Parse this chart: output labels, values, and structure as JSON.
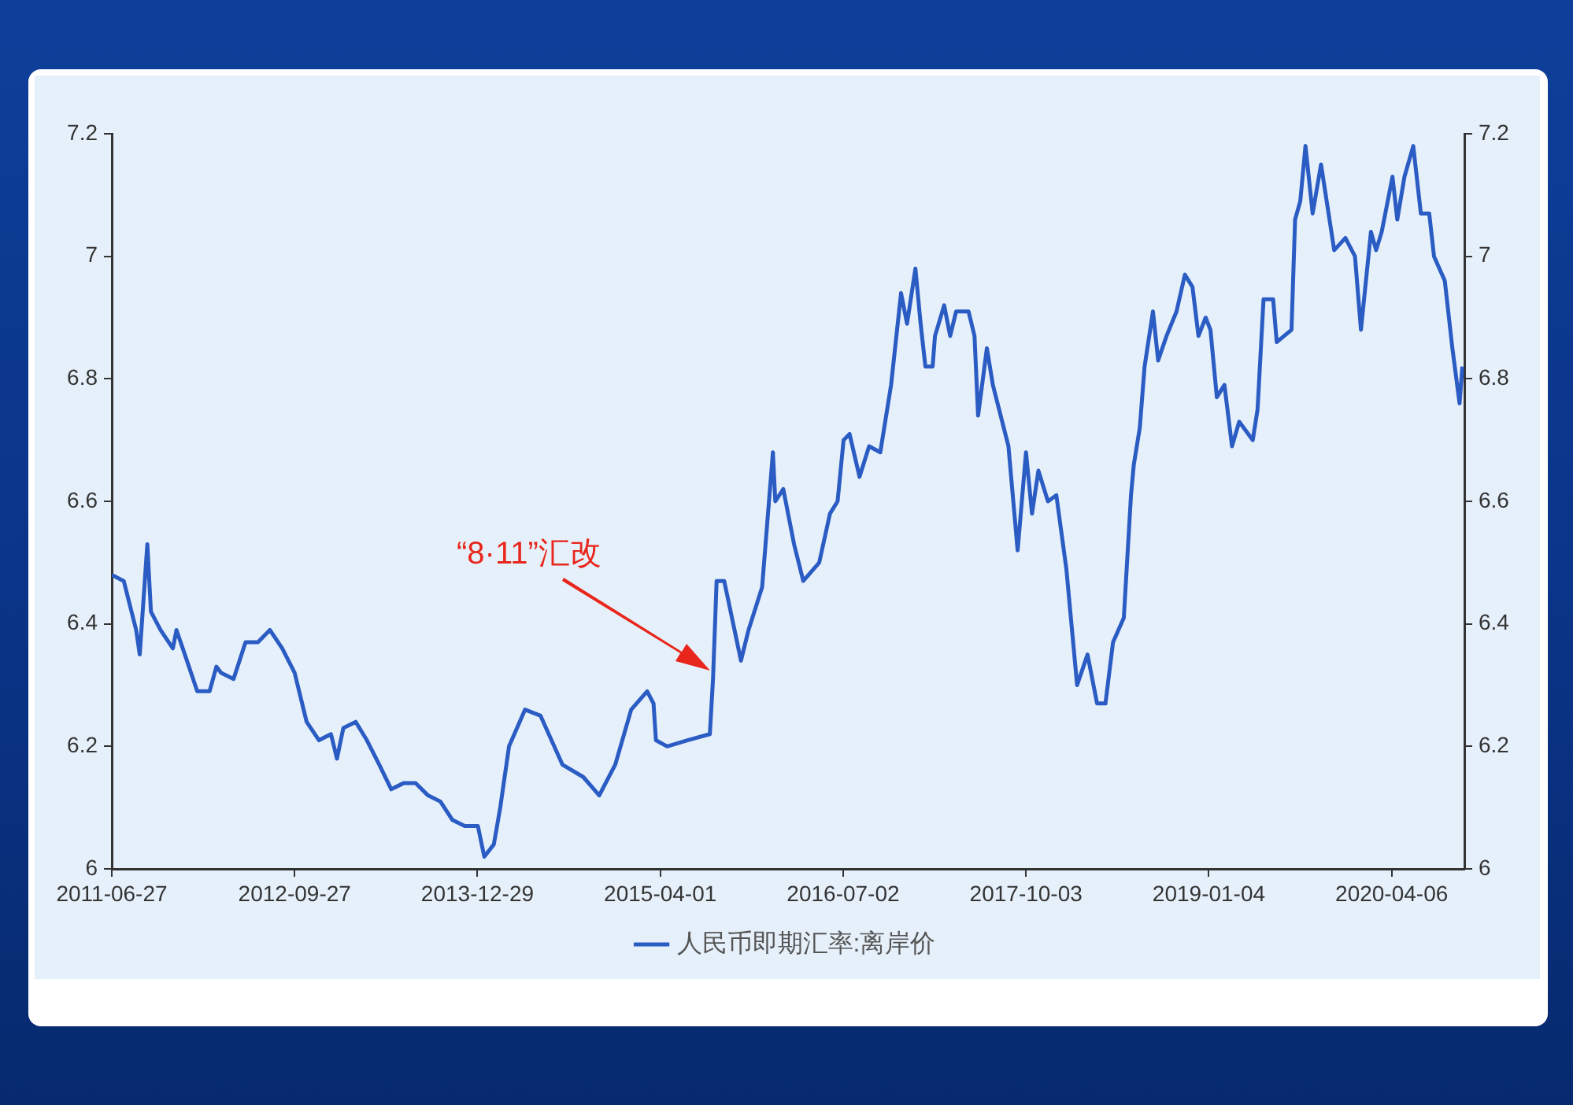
{
  "chart_data": {
    "type": "line",
    "x": [
      "2011-06-27",
      "2011-07-27",
      "2011-08-27",
      "2011-09-05",
      "2011-09-24",
      "2011-10-03",
      "2011-10-27",
      "2011-11-27",
      "2011-12-06",
      "2011-12-27",
      "2012-01-27",
      "2012-02-27",
      "2012-03-15",
      "2012-03-27",
      "2012-04-27",
      "2012-05-27",
      "2012-06-27",
      "2012-07-27",
      "2012-08-27",
      "2012-09-27",
      "2012-10-27",
      "2012-11-27",
      "2012-12-27",
      "2013-01-11",
      "2013-01-27",
      "2013-02-27",
      "2013-03-27",
      "2013-04-27",
      "2013-05-27",
      "2013-06-27",
      "2013-07-27",
      "2013-08-27",
      "2013-09-27",
      "2013-10-27",
      "2013-11-27",
      "2013-12-30",
      "2014-01-15",
      "2014-02-08",
      "2014-02-24",
      "2014-03-18",
      "2014-04-27",
      "2014-06-05",
      "2014-07-30",
      "2014-09-20",
      "2014-10-30",
      "2014-12-09",
      "2015-01-18",
      "2015-02-27",
      "2015-03-15",
      "2015-03-21",
      "2015-04-18",
      "2015-06-08",
      "2015-08-03",
      "2015-08-11",
      "2015-08-20",
      "2015-09-08",
      "2015-10-20",
      "2015-11-08",
      "2015-12-12",
      "2016-01-08",
      "2016-01-14",
      "2016-02-03",
      "2016-03-01",
      "2016-03-24",
      "2016-05-03",
      "2016-05-30",
      "2016-06-18",
      "2016-07-03",
      "2016-07-18",
      "2016-08-12",
      "2016-09-05",
      "2016-10-03",
      "2016-10-30",
      "2016-11-24",
      "2016-12-09",
      "2016-12-30",
      "2017-01-12",
      "2017-01-24",
      "2017-02-11",
      "2017-02-17",
      "2017-03-12",
      "2017-03-27",
      "2017-04-11",
      "2017-05-12",
      "2017-05-27",
      "2017-06-05",
      "2017-06-27",
      "2017-07-12",
      "2017-08-20",
      "2017-09-12",
      "2017-10-03",
      "2017-10-18",
      "2017-11-03",
      "2017-11-27",
      "2017-12-18",
      "2018-01-12",
      "2018-02-08",
      "2018-03-06",
      "2018-03-30",
      "2018-04-20",
      "2018-05-09",
      "2018-06-05",
      "2018-06-23",
      "2018-06-30",
      "2018-07-15",
      "2018-07-27",
      "2018-08-17",
      "2018-08-30",
      "2018-09-20",
      "2018-10-15",
      "2018-11-05",
      "2018-11-24",
      "2018-12-09",
      "2018-12-27",
      "2019-01-08",
      "2019-01-24",
      "2019-02-12",
      "2019-03-03",
      "2019-03-21",
      "2019-04-24",
      "2019-05-06",
      "2019-05-21",
      "2019-06-14",
      "2019-06-23",
      "2019-07-30",
      "2019-08-08",
      "2019-08-21",
      "2019-09-03",
      "2019-09-21",
      "2019-10-12",
      "2019-11-14",
      "2019-12-12",
      "2020-01-05",
      "2020-01-20",
      "2020-02-14",
      "2020-02-27",
      "2020-03-12",
      "2020-04-08",
      "2020-04-20",
      "2020-05-08",
      "2020-05-30",
      "2020-06-18",
      "2020-07-09",
      "2020-07-21",
      "2020-08-17",
      "2020-09-05",
      "2020-09-23",
      "2020-09-30"
    ],
    "series": [
      {
        "name": "人民币即期汇率:离岸价",
        "color": "#2b5cc4",
        "values": [
          6.48,
          6.47,
          6.39,
          6.35,
          6.53,
          6.42,
          6.39,
          6.36,
          6.39,
          6.35,
          6.29,
          6.29,
          6.33,
          6.32,
          6.31,
          6.37,
          6.37,
          6.39,
          6.36,
          6.32,
          6.24,
          6.21,
          6.22,
          6.18,
          6.23,
          6.24,
          6.21,
          6.17,
          6.13,
          6.14,
          6.14,
          6.12,
          6.11,
          6.08,
          6.07,
          6.07,
          6.02,
          6.04,
          6.1,
          6.2,
          6.26,
          6.25,
          6.17,
          6.15,
          6.12,
          6.17,
          6.26,
          6.29,
          6.27,
          6.21,
          6.2,
          6.21,
          6.22,
          6.31,
          6.47,
          6.47,
          6.34,
          6.39,
          6.46,
          6.68,
          6.6,
          6.62,
          6.53,
          6.47,
          6.5,
          6.58,
          6.6,
          6.7,
          6.71,
          6.64,
          6.69,
          6.68,
          6.79,
          6.94,
          6.89,
          6.98,
          6.89,
          6.82,
          6.82,
          6.87,
          6.92,
          6.87,
          6.91,
          6.91,
          6.87,
          6.74,
          6.85,
          6.79,
          6.69,
          6.52,
          6.68,
          6.58,
          6.65,
          6.6,
          6.61,
          6.49,
          6.3,
          6.35,
          6.27,
          6.27,
          6.37,
          6.41,
          6.61,
          6.66,
          6.72,
          6.82,
          6.91,
          6.83,
          6.87,
          6.91,
          6.97,
          6.95,
          6.87,
          6.9,
          6.88,
          6.77,
          6.79,
          6.69,
          6.73,
          6.7,
          6.75,
          6.93,
          6.93,
          6.86,
          6.88,
          7.06,
          7.09,
          7.18,
          7.07,
          7.15,
          7.01,
          7.03,
          7,
          6.88,
          7.04,
          7.01,
          7.04,
          7.13,
          7.06,
          7.13,
          7.18,
          7.07,
          7.07,
          7,
          6.96,
          6.85,
          6.76,
          6.82
        ]
      }
    ],
    "xlim": [
      "2011-06-27",
      "2020-10-05"
    ],
    "xticks": [
      "2011-06-27",
      "2012-09-27",
      "2013-12-29",
      "2015-04-01",
      "2016-07-02",
      "2017-10-03",
      "2019-01-04",
      "2020-04-06"
    ],
    "ylim": [
      6,
      7.2
    ],
    "yticks": [
      6,
      6.2,
      6.4,
      6.6,
      6.8,
      7,
      7.2
    ],
    "y2lim": [
      6,
      7.2
    ],
    "y2ticks": [
      6,
      6.2,
      6.4,
      6.6,
      6.8,
      7,
      7.2
    ],
    "legend": "bottom",
    "annotations": [
      "“8·11”汇改"
    ]
  }
}
